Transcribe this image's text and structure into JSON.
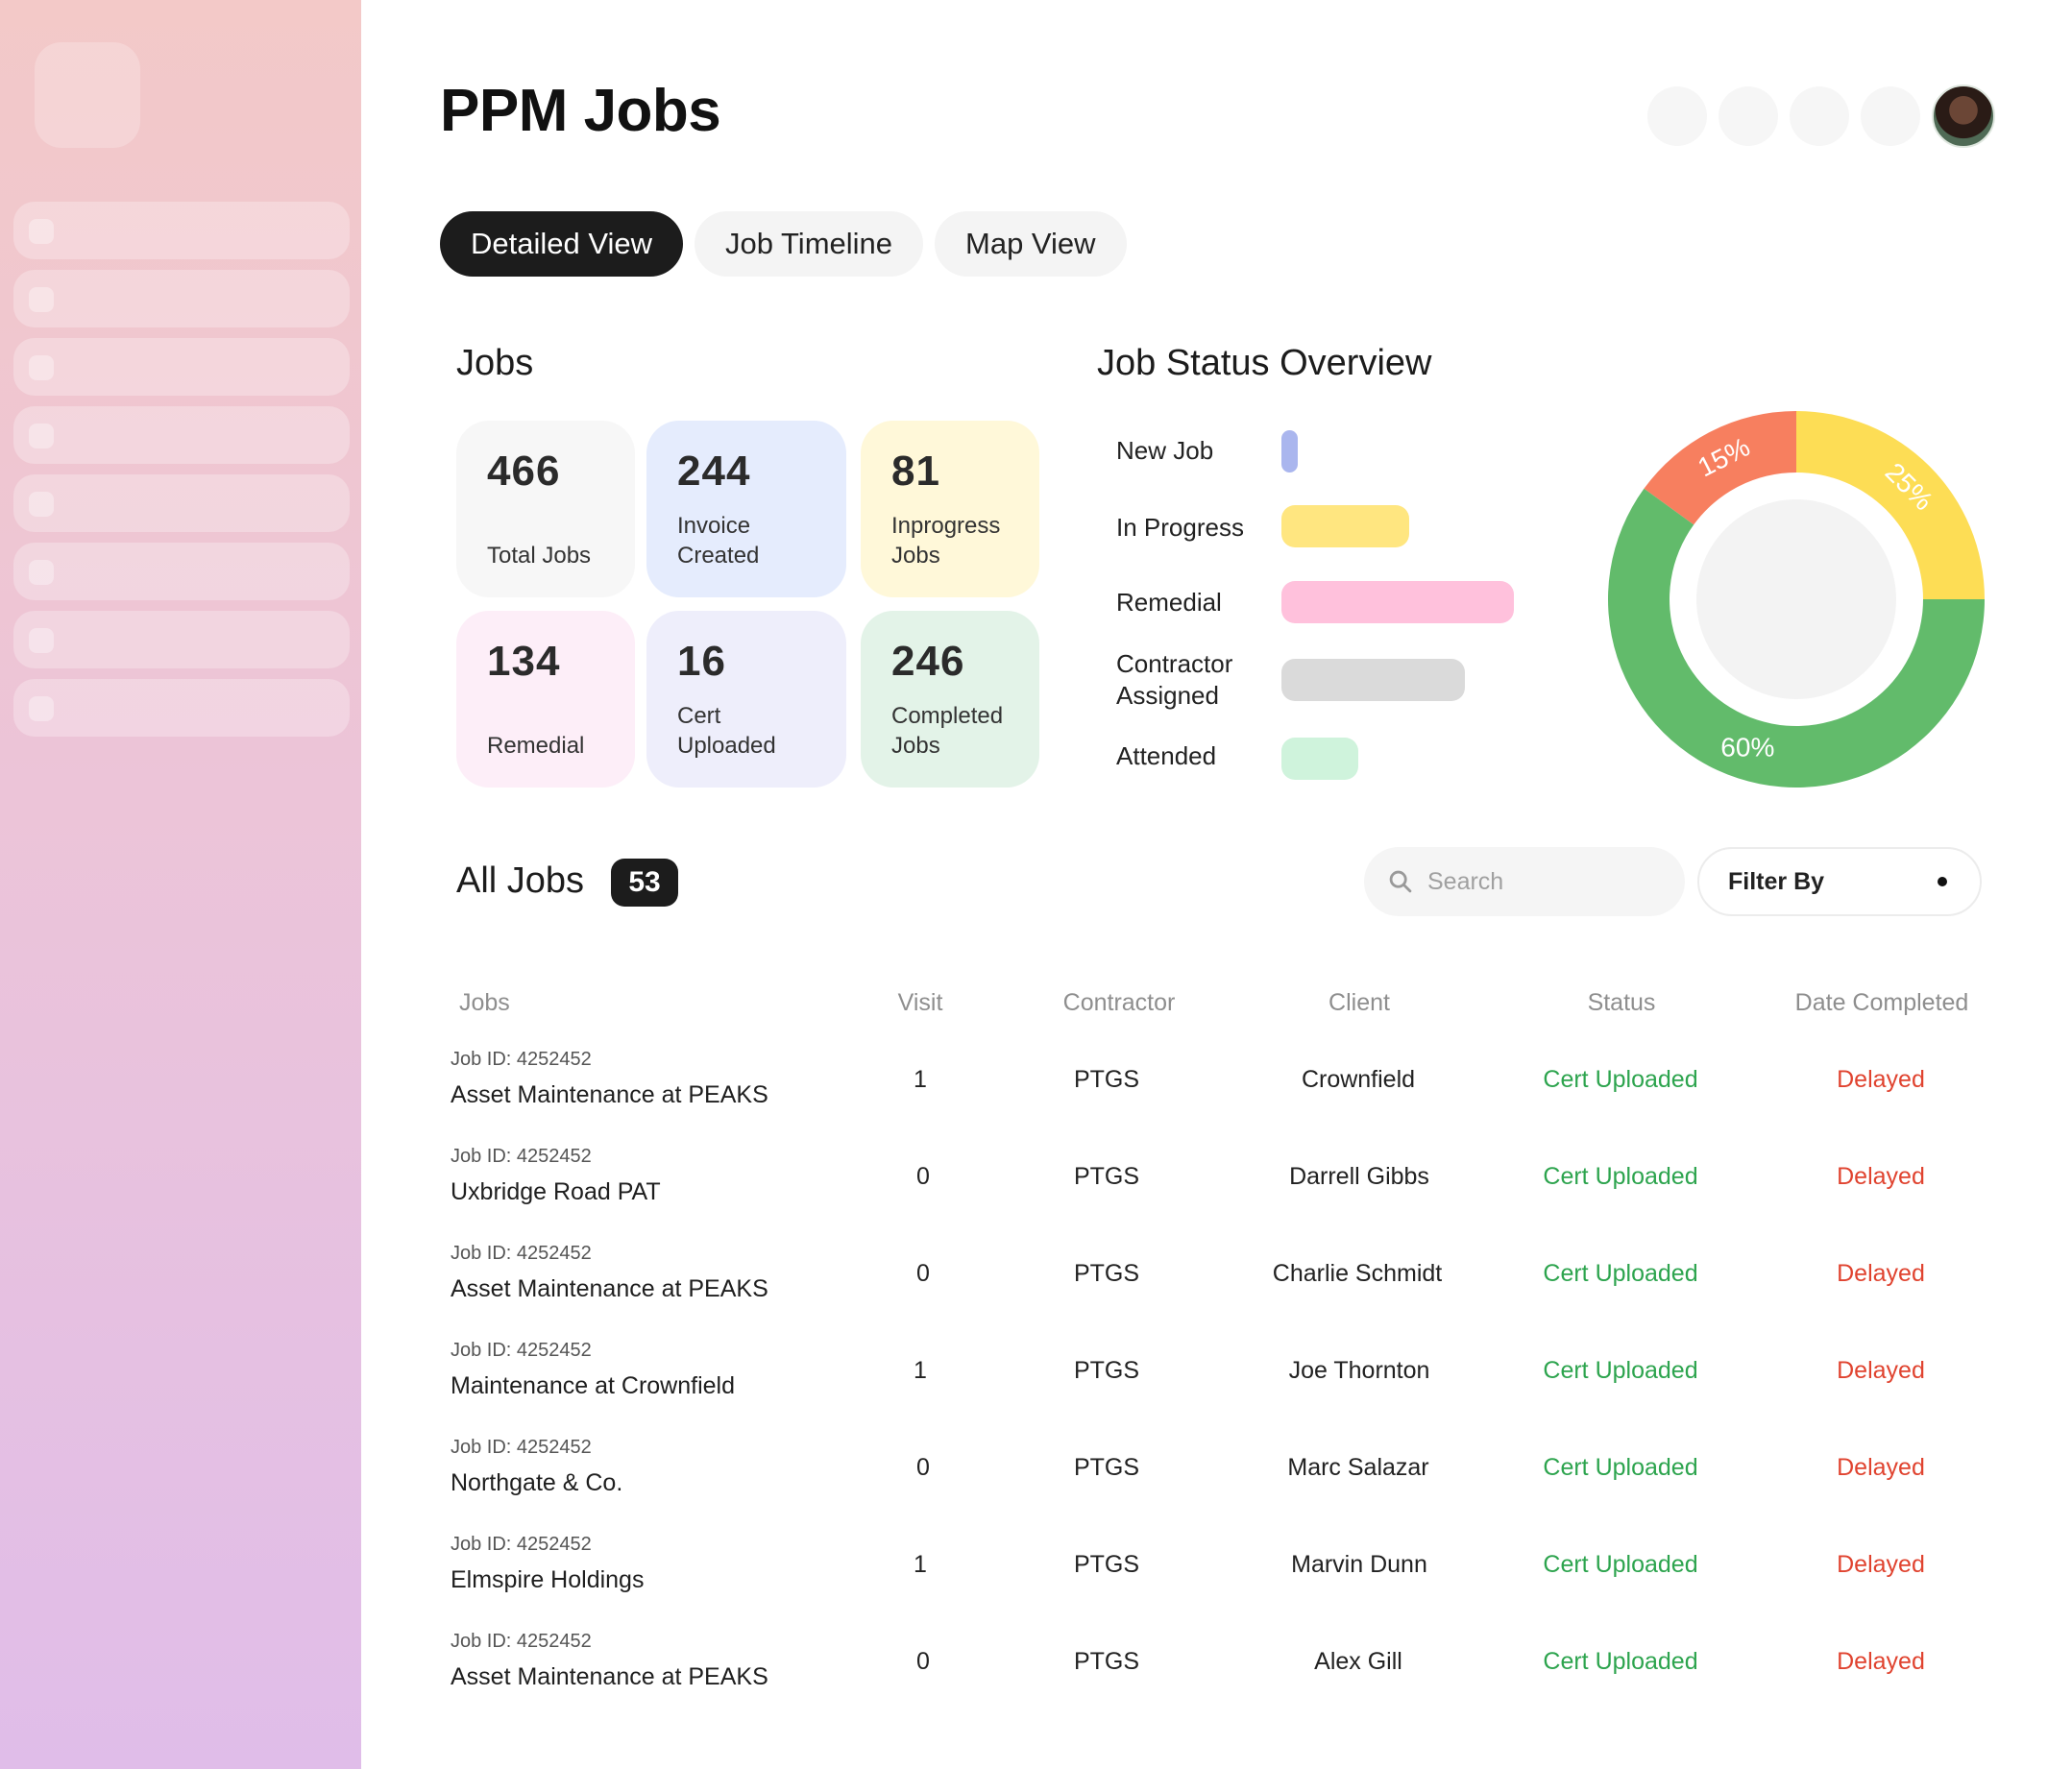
{
  "header": {
    "title": "PPM Jobs"
  },
  "tabs": [
    {
      "label": "Detailed View",
      "active": true
    },
    {
      "label": "Job Timeline",
      "active": false
    },
    {
      "label": "Map View",
      "active": false
    }
  ],
  "jobs_summary": {
    "title": "Jobs",
    "cards": [
      {
        "value": "466",
        "label": "Total Jobs",
        "color": "#f7f7f7"
      },
      {
        "value": "244",
        "label": "Invoice Created",
        "color": "#e5ecfd"
      },
      {
        "value": "81",
        "label": "Inprogress Jobs",
        "color": "#fff8d9"
      },
      {
        "value": "134",
        "label": "Remedial",
        "color": "#fdeef8"
      },
      {
        "value": "16",
        "label": "Cert Uploaded",
        "color": "#eeeefb"
      },
      {
        "value": "246",
        "label": "Completed Jobs",
        "color": "#e3f3e8"
      }
    ]
  },
  "status_overview": {
    "title": "Job Status Overview",
    "legend": [
      {
        "label": "New Job",
        "color": "#aab6ee",
        "value": 0.07
      },
      {
        "label": "In Progress",
        "color": "#ffe680",
        "value": 0.55
      },
      {
        "label": "Remedial",
        "color": "#ffc1dc",
        "value": 1.0
      },
      {
        "label": "Contractor Assigned",
        "color": "#dadada",
        "value": 0.79
      },
      {
        "label": "Attended",
        "color": "#cff3dc",
        "value": 0.33
      }
    ],
    "donut": [
      {
        "label": "15%",
        "value": 15,
        "color": "#f77f5f"
      },
      {
        "label": "25%",
        "value": 25,
        "color": "#fddd55"
      },
      {
        "label": "60%",
        "value": 60,
        "color": "#62bb6b"
      }
    ]
  },
  "all_jobs": {
    "title": "All Jobs",
    "count": "53",
    "search_placeholder": "Search",
    "filter_label": "Filter By",
    "columns": [
      "Jobs",
      "Visit",
      "Contractor",
      "Client",
      "Status",
      "Date Completed"
    ],
    "rows": [
      {
        "job_id": "Job ID: 4252452",
        "name": "Asset Maintenance at PEAKS",
        "visit": "1",
        "contractor": "PTGS",
        "client": "Crownfield",
        "status": "Cert Uploaded",
        "date": "Delayed"
      },
      {
        "job_id": "Job ID: 4252452",
        "name": "Uxbridge Road PAT",
        "visit": "0",
        "contractor": "PTGS",
        "client": "Darrell Gibbs",
        "status": "Cert Uploaded",
        "date": "Delayed"
      },
      {
        "job_id": "Job ID: 4252452",
        "name": "Asset Maintenance at PEAKS",
        "visit": "0",
        "contractor": "PTGS",
        "client": "Charlie Schmidt",
        "status": "Cert Uploaded",
        "date": "Delayed"
      },
      {
        "job_id": "Job ID: 4252452",
        "name": "Maintenance at Crownfield",
        "visit": "1",
        "contractor": "PTGS",
        "client": "Joe Thornton",
        "status": "Cert Uploaded",
        "date": "Delayed"
      },
      {
        "job_id": "Job ID: 4252452",
        "name": "Northgate & Co.",
        "visit": "0",
        "contractor": "PTGS",
        "client": "Marc Salazar",
        "status": "Cert Uploaded",
        "date": "Delayed"
      },
      {
        "job_id": "Job ID: 4252452",
        "name": "Elmspire Holdings",
        "visit": "1",
        "contractor": "PTGS",
        "client": "Marvin Dunn",
        "status": "Cert Uploaded",
        "date": "Delayed"
      },
      {
        "job_id": "Job ID: 4252452",
        "name": "Asset Maintenance at PEAKS",
        "visit": "0",
        "contractor": "PTGS",
        "client": "Alex Gill",
        "status": "Cert Uploaded",
        "date": "Delayed"
      }
    ]
  }
}
